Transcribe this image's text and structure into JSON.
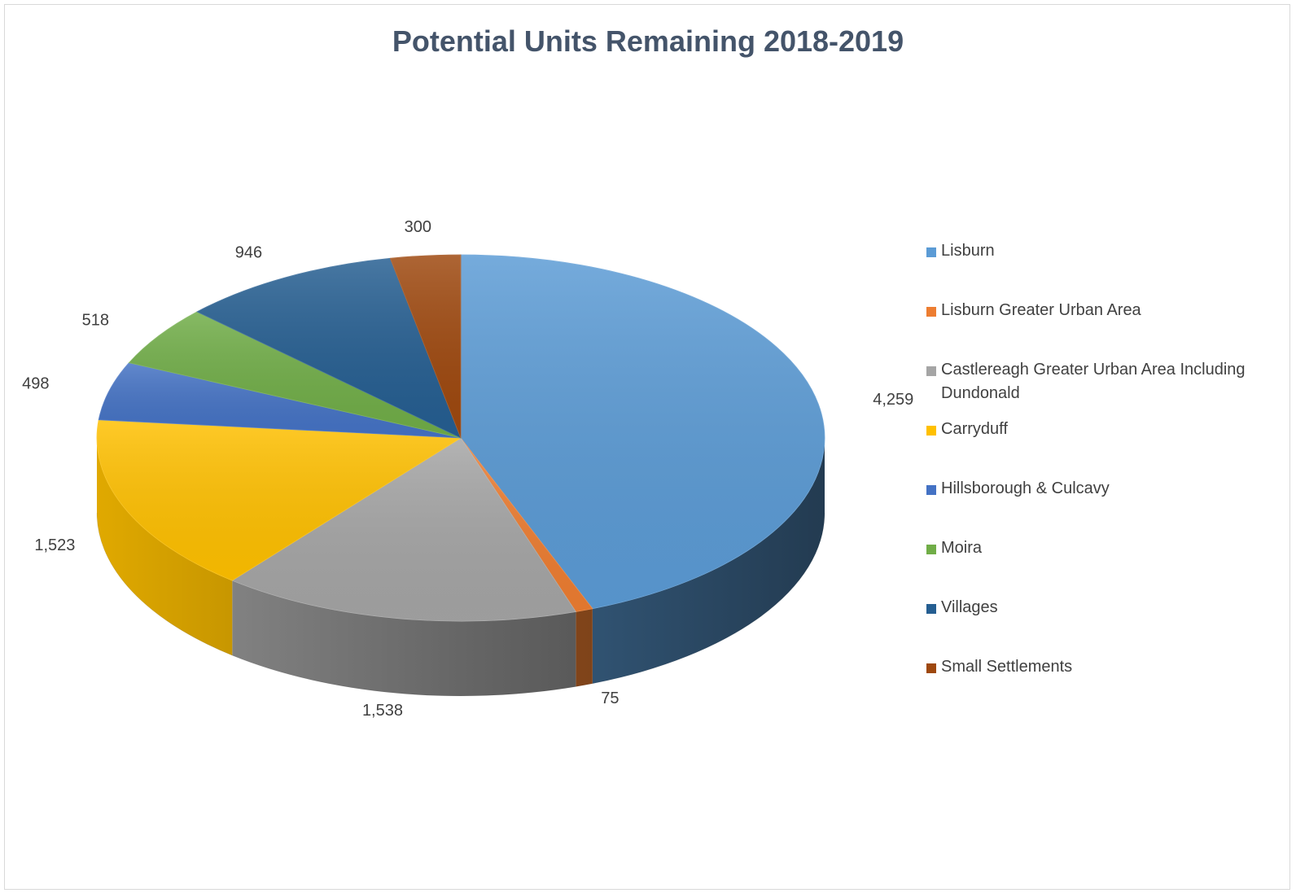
{
  "chart_data": {
    "type": "pie",
    "title": "Potential Units Remaining 2018-2019",
    "categories": [
      "Lisburn",
      "Lisburn Greater Urban Area",
      "Castlereagh Greater Urban Area Including Dundonald",
      "Carryduff",
      "Hillsborough & Culcavy",
      "Moira",
      "Villages",
      "Small Settlements"
    ],
    "values": [
      4259,
      75,
      1538,
      1523,
      498,
      518,
      946,
      300
    ],
    "value_labels": [
      "4,259",
      "75",
      "1,538",
      "1,523",
      "498",
      "518",
      "946",
      "300"
    ],
    "colors": [
      "#5b9bd5",
      "#ed7d31",
      "#a5a5a5",
      "#ffc000",
      "#4472c4",
      "#70ad47",
      "#255e91",
      "#9e480e"
    ],
    "style": "3d",
    "legend_position": "right",
    "data_labels": "outside-end"
  }
}
